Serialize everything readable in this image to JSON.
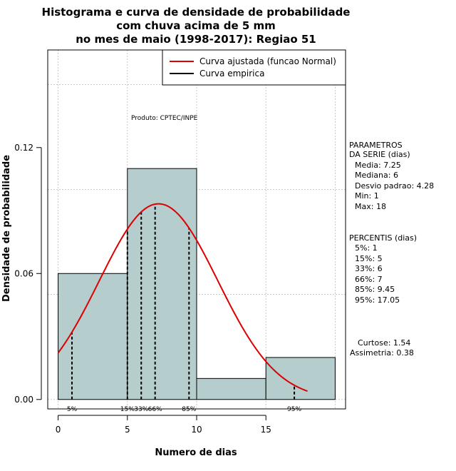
{
  "chart_data": {
    "type": "bar",
    "title": [
      "Histograma e curva de densidade de probabilidade",
      "com chuva acima de 5 mm",
      "no mes de maio (1998-2017): Regiao 51"
    ],
    "xlabel": "Numero de dias",
    "ylabel": "Densidade de probabilidade",
    "xlim": [
      -0.75,
      20.75
    ],
    "ylim": [
      -0.0045,
      0.1665
    ],
    "x_ticks": [
      0,
      5,
      10,
      15
    ],
    "y_ticks": [
      0.0,
      0.06,
      0.12
    ],
    "y_tick_labels": [
      "0.00",
      "0.06",
      "0.12"
    ],
    "grid": true,
    "bins": [
      {
        "x0": 0,
        "x1": 5,
        "density": 0.06
      },
      {
        "x0": 5,
        "x1": 10,
        "density": 0.11
      },
      {
        "x0": 10,
        "x1": 15,
        "density": 0.01
      },
      {
        "x0": 15,
        "x1": 20,
        "density": 0.02
      }
    ],
    "bar_color": "#b5cdcd",
    "normal_fit": {
      "mean": 7.25,
      "sd": 4.28,
      "x_from": 0,
      "x_to": 18,
      "color": "#dd0000"
    },
    "legend": [
      {
        "label": "Curva ajustada (funcao Normal)",
        "color": "#dd0000"
      },
      {
        "label": "Curva empirica",
        "color": "#000000"
      }
    ],
    "legend_position": "top-right",
    "percentile_markers": [
      {
        "label": "5%",
        "x": 1
      },
      {
        "label": "15%",
        "x": 5
      },
      {
        "label": "33%",
        "x": 6
      },
      {
        "label": "66%",
        "x": 7
      },
      {
        "label": "85%",
        "x": 9.45
      },
      {
        "label": "95%",
        "x": 17.05
      }
    ],
    "annotation": "Produto: CPTEC/INPE",
    "side_panel": {
      "params_header": [
        "PARAMETROS",
        "DA SERIE (dias)"
      ],
      "params": [
        "Media: 7.25",
        "Mediana: 6",
        "Desvio padrao: 4.28",
        "Min: 1",
        "Max: 18"
      ],
      "percentis_header": "PERCENTIS (dias)",
      "percentis": [
        "5%: 1",
        "15%: 5",
        "33%: 6",
        "66%: 7",
        "85%: 9.45",
        "95%: 17.05"
      ],
      "curtose": "Curtose: 1.54",
      "assimetria": "Assimetria: 0.38"
    }
  }
}
